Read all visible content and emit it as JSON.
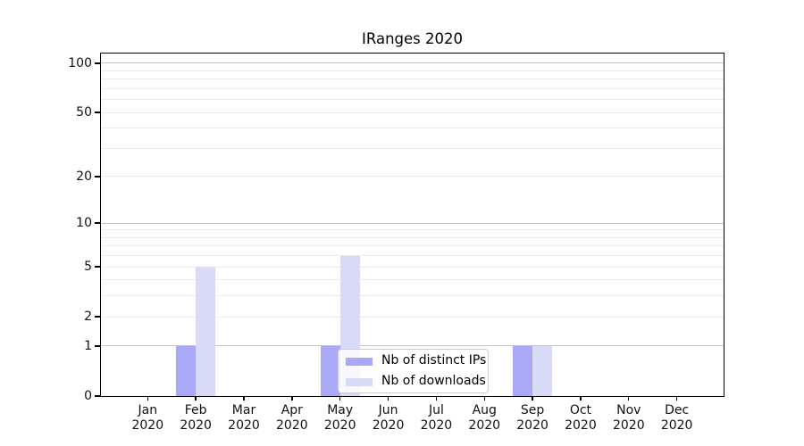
{
  "chart_data": {
    "type": "bar",
    "title": "IRanges 2020",
    "x_tick_months": [
      "Jan",
      "Feb",
      "Mar",
      "Apr",
      "May",
      "Jun",
      "Jul",
      "Aug",
      "Sep",
      "Oct",
      "Nov",
      "Dec"
    ],
    "x_tick_year": "2020",
    "y_scale": "log1p",
    "y_ticks": [
      0,
      1,
      2,
      5,
      10,
      20,
      50,
      100
    ],
    "y_major_gridlines": [
      1,
      10,
      100
    ],
    "y_minor_gridlines": [
      2,
      3,
      4,
      5,
      6,
      7,
      8,
      9,
      20,
      30,
      40,
      50,
      60,
      70,
      80,
      90
    ],
    "ylim": [
      0,
      115
    ],
    "grid": "horizontal",
    "legend_position": "lower center",
    "series": [
      {
        "name": "Nb of distinct IPs",
        "color": "#a9a9f7",
        "values": [
          0,
          1,
          0,
          0,
          1,
          0,
          0,
          0,
          1,
          0,
          0,
          0
        ]
      },
      {
        "name": "Nb of downloads",
        "color": "#d9d9f8",
        "values": [
          0,
          5,
          0,
          0,
          6,
          0,
          0,
          0,
          1,
          0,
          0,
          0
        ]
      }
    ]
  }
}
